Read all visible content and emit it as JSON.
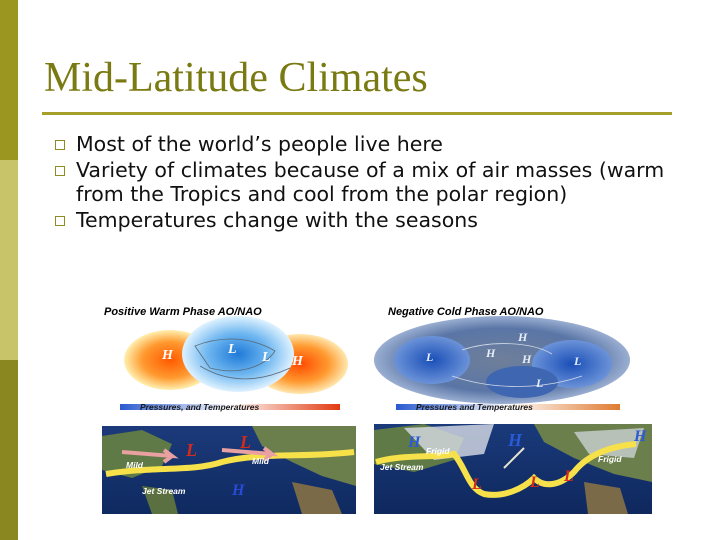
{
  "slide": {
    "title": "Mid-Latitude Climates",
    "accent_colors": {
      "title": "#7a7a12",
      "rule": "#a6a02b",
      "sidebar_top": "#9a9620",
      "sidebar_mid": "#c8c46a",
      "sidebar_bottom": "#8a8620"
    }
  },
  "bullets": [
    "Most of the world’s people live here",
    "Variety of climates because of a mix of air masses (warm from the Tropics and cool from the polar region)",
    "Temperatures change with the seasons"
  ],
  "maps": {
    "positive": {
      "title": "Positive Warm Phase AO/NAO",
      "caption": "Pressures, and Temperatures",
      "markers": [
        "H",
        "L",
        "L",
        "H"
      ]
    },
    "negative": {
      "title": "Negative Cold Phase AO/NAO",
      "caption": "Pressures and Temperatures",
      "markers": [
        "H",
        "L",
        "H",
        "H",
        "L",
        "L"
      ]
    },
    "jet_warm": {
      "labels": [
        "Mild",
        "Mild",
        "Jet Stream"
      ],
      "markers": [
        "L",
        "L",
        "H"
      ]
    },
    "jet_cold": {
      "labels": [
        "Frigid",
        "Frigid",
        "Jet Stream"
      ],
      "markers": [
        "H",
        "H",
        "H",
        "L",
        "L",
        "L"
      ]
    }
  }
}
